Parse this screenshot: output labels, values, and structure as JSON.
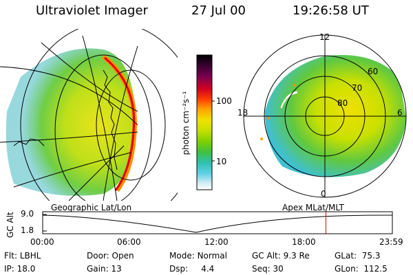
{
  "header": {
    "title": "Ultraviolet Imager",
    "date": "27 Jul 00",
    "time": "19:26:58 UT"
  },
  "colorbar": {
    "label": "photon cm⁻²s⁻¹",
    "ticks": [
      "100",
      "10"
    ],
    "colors": [
      "#000000",
      "#3a0030",
      "#7a0050",
      "#c00020",
      "#f00000",
      "#ff6000",
      "#ffa000",
      "#f0e000",
      "#c8e000",
      "#90d000",
      "#50c030",
      "#30c0a0",
      "#40c8e0",
      "#a0e0f0",
      "#e0f0f8",
      "#ffffff"
    ]
  },
  "left_panel": {
    "caption": "Geographic Lat/Lon"
  },
  "right_panel": {
    "caption": "Apex MLat/MLT",
    "mlt_labels": [
      "12",
      "18",
      "6",
      "0"
    ],
    "lat_labels": [
      "60",
      "70",
      "80"
    ]
  },
  "timeline": {
    "ylabel": "GC Alt",
    "yticks": [
      "9.0",
      "1.8"
    ],
    "xticks": [
      "00:00",
      "06:00",
      "12:00",
      "18:00",
      "23:59"
    ],
    "marker_color": "#e00000",
    "marker_time_fraction": 0.81
  },
  "info": {
    "flt_label": "Flt:",
    "flt_value": "LBHL",
    "ip_label": "IP:",
    "ip_value": "18.0",
    "door_label": "Door:",
    "door_value": "Open",
    "gain_label": "Gain:",
    "gain_value": "13",
    "mode_label": "Mode:",
    "mode_value": "Normal",
    "dsp_label": "Dsp:",
    "dsp_value": "4.4",
    "gcalt_label": "GC Alt:",
    "gcalt_value": "9.3 Re",
    "seq_label": "Seq:",
    "seq_value": "30",
    "glat_label": "GLat:",
    "glat_value": "75.3",
    "glon_label": "GLon:",
    "glon_value": "112.5"
  }
}
